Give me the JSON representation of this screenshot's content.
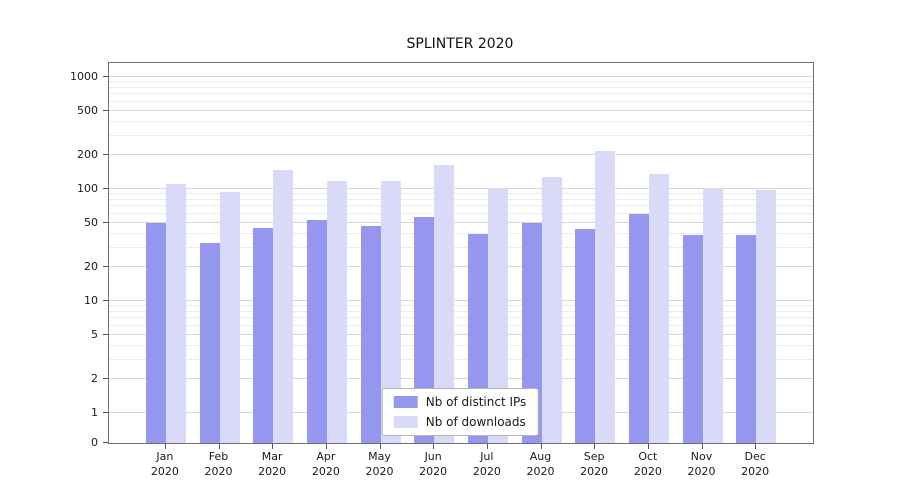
{
  "chart_data": {
    "type": "bar",
    "title": "SPLINTER 2020",
    "categories": [
      "Jan 2020",
      "Feb 2020",
      "Mar 2020",
      "Apr 2020",
      "May 2020",
      "Jun 2020",
      "Jul 2020",
      "Aug 2020",
      "Sep 2020",
      "Oct 2020",
      "Nov 2020",
      "Dec 2020"
    ],
    "series": [
      {
        "name": "Nb of distinct IPs",
        "color": "#9597ee",
        "values": [
          50,
          33,
          45,
          53,
          47,
          56,
          40,
          50,
          44,
          60,
          39,
          39
        ]
      },
      {
        "name": "Nb of downloads",
        "color": "#d9daf8",
        "values": [
          110,
          95,
          148,
          118,
          118,
          165,
          100,
          128,
          220,
          135,
          101,
          97
        ]
      }
    ],
    "yscale": "symlog",
    "yticks": [
      0,
      1,
      2,
      5,
      10,
      20,
      50,
      100,
      200,
      500,
      1000
    ],
    "ylim": [
      0,
      1300
    ],
    "xlabel": "",
    "ylabel": "",
    "grid": true,
    "legend_position": "lower center"
  },
  "legend": {
    "items": [
      {
        "label": "Nb of distinct IPs"
      },
      {
        "label": "Nb of downloads"
      }
    ]
  }
}
